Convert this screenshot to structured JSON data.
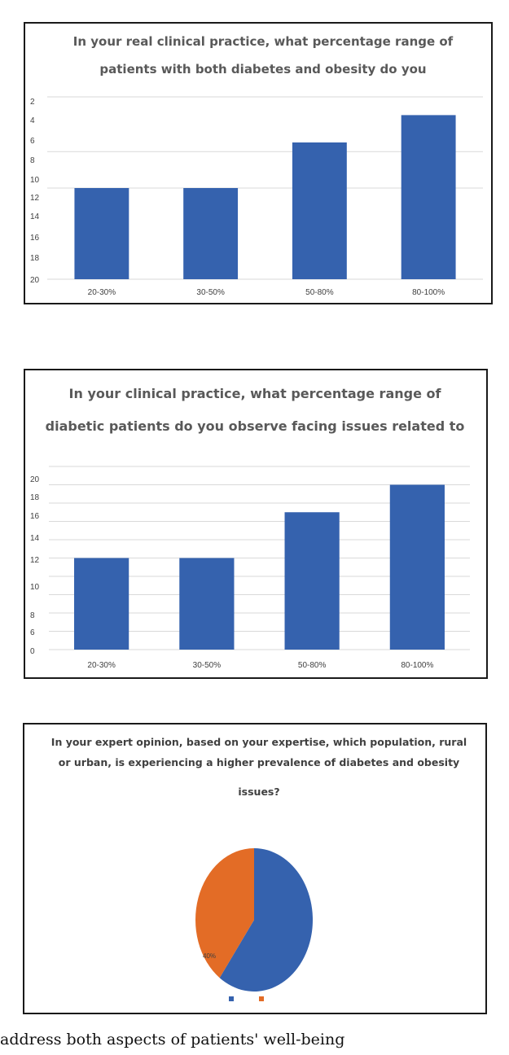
{
  "chart_data": [
    {
      "type": "bar",
      "title_lines": [
        "In your real clinical practice, what percentage range of",
        "patients with both diabetes and obesity do you"
      ],
      "categories": [
        "20-30%",
        "30-50%",
        "50-80%",
        "80-100%"
      ],
      "values": [
        10,
        10,
        15,
        18
      ],
      "ytick_labels": [
        "2",
        "4",
        "6",
        "8",
        "10",
        "12",
        "14",
        "16",
        "18",
        "20"
      ],
      "ylim": [
        0,
        20
      ],
      "grid": true,
      "bar_color": "#3562AE"
    },
    {
      "type": "bar",
      "title_lines": [
        "In your clinical practice, what percentage range of",
        "diabetic patients do you observe facing issues related to"
      ],
      "categories": [
        "20-30%",
        "30-50%",
        "50-80%",
        "80-100%"
      ],
      "values": [
        10,
        10,
        15,
        18
      ],
      "ytick_labels": [
        "0",
        "6",
        "8",
        "10",
        "12",
        "14",
        "16",
        "18",
        "20"
      ],
      "ylim": [
        0,
        20
      ],
      "grid": true,
      "bar_color": "#3562AE"
    },
    {
      "type": "pie",
      "title_lines": [
        "In your expert opinion, based on your expertise, which population, rural",
        "or urban, is experiencing a higher prevalence of diabetes and obesity",
        "issues?"
      ],
      "slices": [
        {
          "value": 60,
          "color": "#3562AE"
        },
        {
          "value": 40,
          "color": "#E36C26",
          "label": "40%"
        }
      ],
      "legend": "bottom"
    }
  ],
  "footer_text": "address both aspects of patients' well-being"
}
